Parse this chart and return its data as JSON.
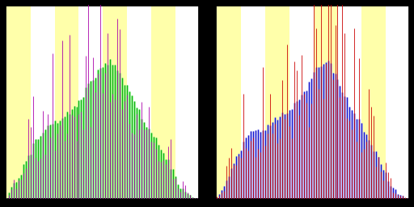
{
  "bg_yellow": "#ffffaa",
  "bg_white": "#ffffff",
  "black": "#000000",
  "left_fill": "#88ee88",
  "left_line": "#00aa00",
  "left_spike": "#aa00aa",
  "right_fill": "#aaaaee",
  "right_line": "#0000cc",
  "right_spike": "#cc0000",
  "figsize": [
    5.12,
    2.56
  ],
  "dpi": 100,
  "n_bars": 80,
  "stripe_period": 10
}
